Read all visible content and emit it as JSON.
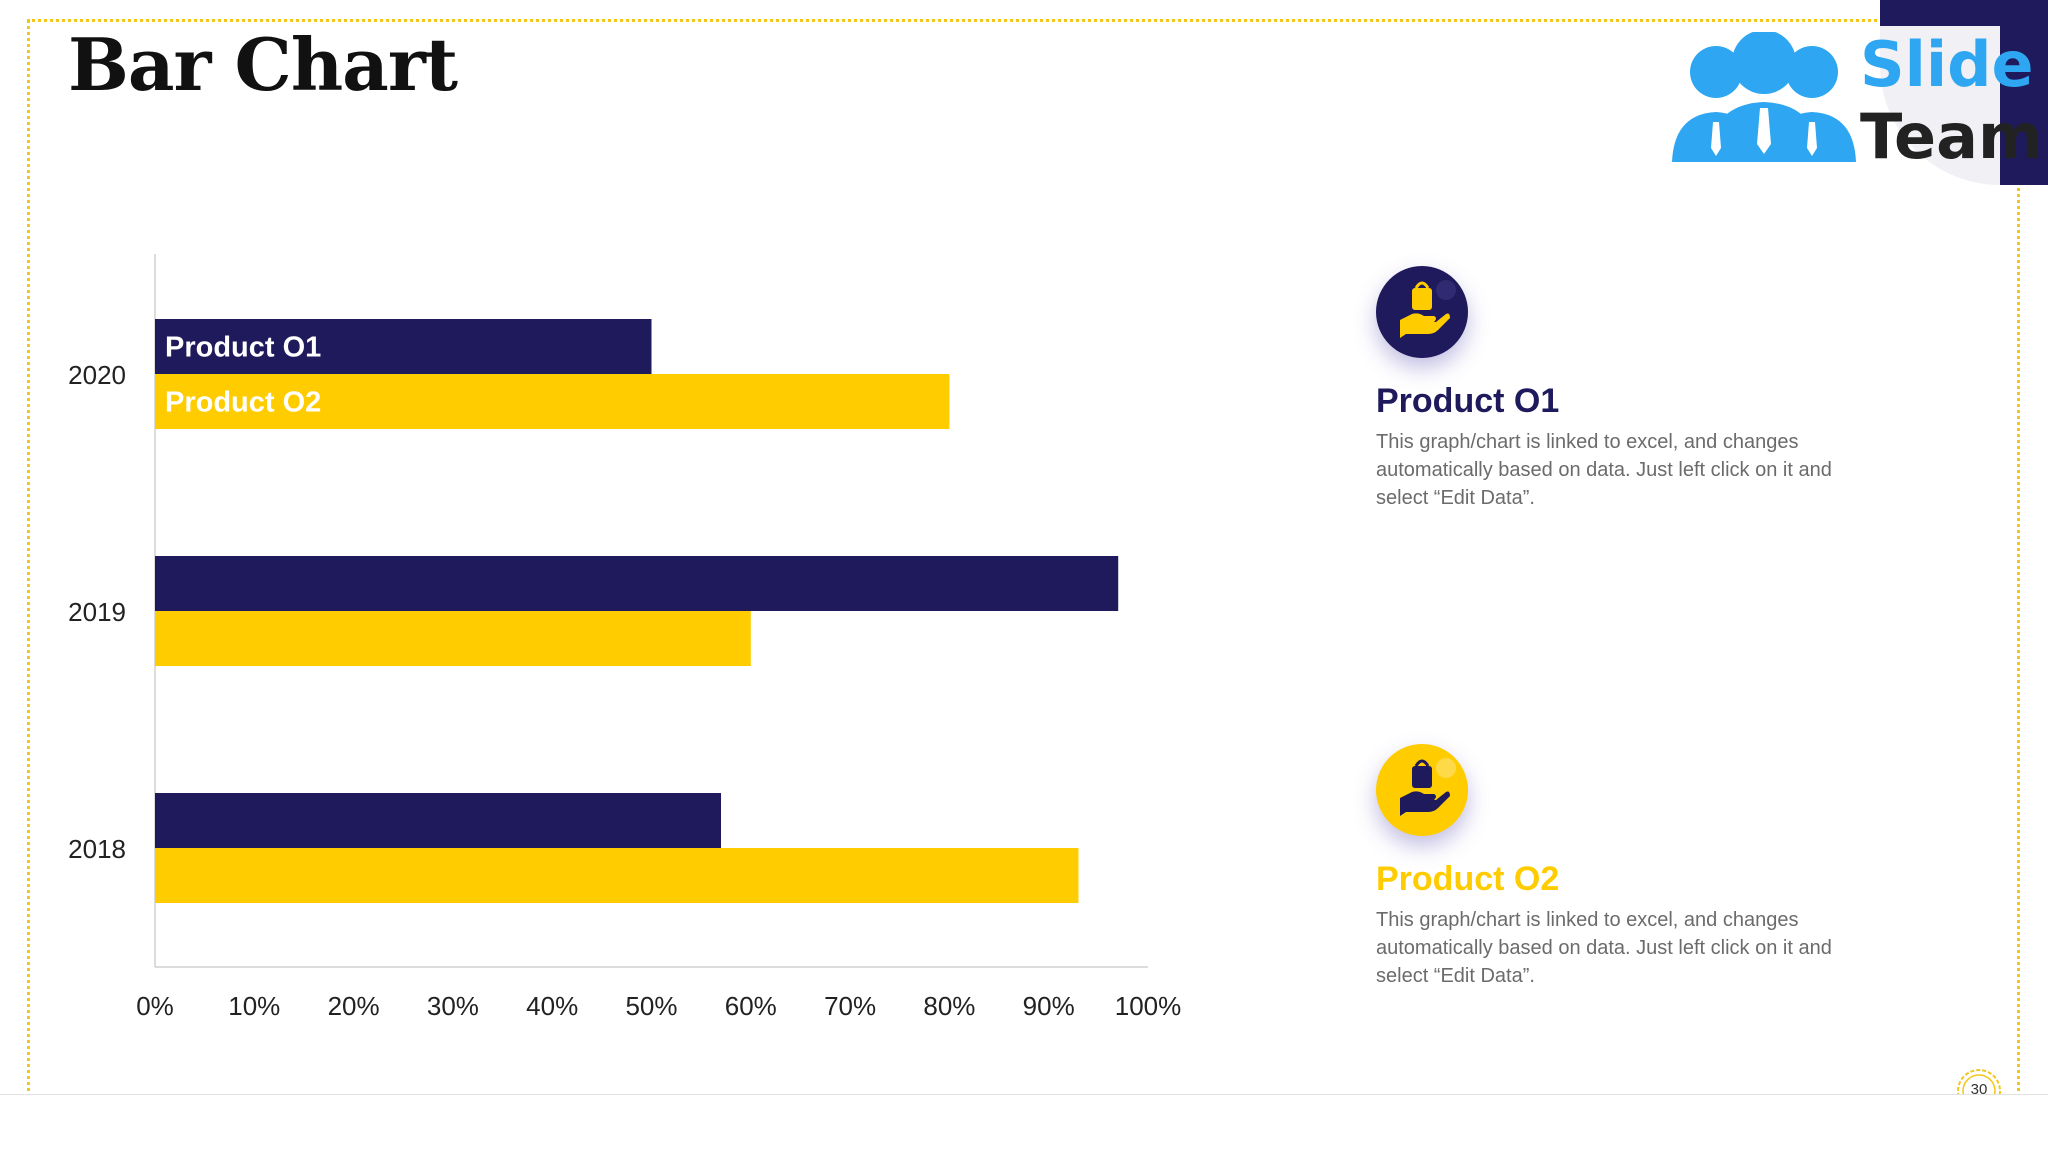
{
  "slide": {
    "title": "Bar Chart",
    "page_number": "30"
  },
  "logo": {
    "line1": "Slide",
    "line2": "Team"
  },
  "colors": {
    "product1": "#1e1a5c",
    "product2": "#ffcc00",
    "frame": "#f5c518",
    "logo_blue": "#2ea6f2"
  },
  "legend": [
    {
      "name": "Product O1",
      "description": "This graph/chart is linked to excel, and changes automatically based on data. Just left click on it and select “Edit Data”.",
      "icon": "hand-holding-bag-icon"
    },
    {
      "name": "Product O2",
      "description": "This graph/chart is linked to excel, and changes automatically based on data. Just left click on it and select “Edit Data”.",
      "icon": "hand-holding-bag-icon"
    }
  ],
  "chart_data": {
    "type": "bar",
    "orientation": "horizontal",
    "title": "",
    "xlabel": "",
    "ylabel": "",
    "categories": [
      "2020",
      "2019",
      "2018"
    ],
    "series": [
      {
        "name": "Product O1",
        "values": [
          50,
          97,
          57
        ]
      },
      {
        "name": "Product O2",
        "values": [
          80,
          60,
          93
        ]
      }
    ],
    "xlim": [
      0,
      100
    ],
    "x_ticks": [
      "0%",
      "10%",
      "20%",
      "30%",
      "40%",
      "50%",
      "60%",
      "70%",
      "80%",
      "90%",
      "100%"
    ],
    "grid": false,
    "legend": "inline-labels-on-first-category"
  }
}
